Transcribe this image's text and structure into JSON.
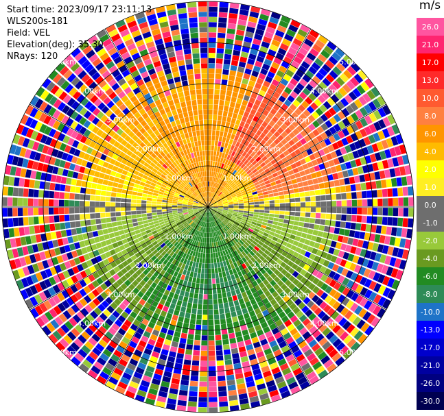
{
  "info": {
    "start_time": "Start time: 2023/09/17 23:11:13",
    "instrument": "WLS200s-181",
    "field": "Field: VEL",
    "elevation": "Elevation(deg): 35.30",
    "nrays": "NRays: 120"
  },
  "chart_data": {
    "type": "heatmap",
    "projection": "polar-ppi",
    "field": "VEL",
    "units": "m/s",
    "n_rays": 120,
    "n_gates": 40,
    "range_max_km": 5,
    "range_rings_km": [
      1,
      2,
      3,
      4,
      5
    ],
    "range_ring_labels": [
      "1.00km",
      "2.00km",
      "3.00km",
      "4.00km",
      "5.00km"
    ],
    "spokes_every_deg": 30,
    "colorbar": {
      "label": "m/s",
      "ticks": [
        "26.0",
        "21.0",
        "17.0",
        "13.0",
        "10.0",
        "8.0",
        "6.0",
        "4.0",
        "2.0",
        "1.0",
        "0.0",
        "-1.0",
        "-2.0",
        "-4.0",
        "-6.0",
        "-8.0",
        "-10.0",
        "-13.0",
        "-17.0",
        "-21.0",
        "-26.0",
        "-30.0"
      ],
      "colors": [
        "#ff55a0",
        "#ff2570",
        "#ff0000",
        "#ff2a2a",
        "#ff5a30",
        "#ff8040",
        "#ff9500",
        "#ffbb00",
        "#ffff00",
        "#ffee22",
        "#6e6e6e",
        "#6e6e6e",
        "#98c93a",
        "#6a9a20",
        "#228b22",
        "#2e8b57",
        "#1e73c8",
        "#0000ff",
        "#0000cc",
        "#0000a0",
        "#000080",
        "#000050"
      ]
    },
    "field_pattern": {
      "inner_gates_north_half": "positive 1-6 m/s (yellow/orange)",
      "inner_gates_northeast": "positive 6-10 m/s (orange/salmon)",
      "inner_gates_east_west_band": "near zero (grey)",
      "inner_gates_south_half": "negative -2 to -8 m/s (green)",
      "inner_gates_south_small_patch": "about -10 m/s (blue)",
      "outer_gates": "noise, mixed colors"
    }
  }
}
